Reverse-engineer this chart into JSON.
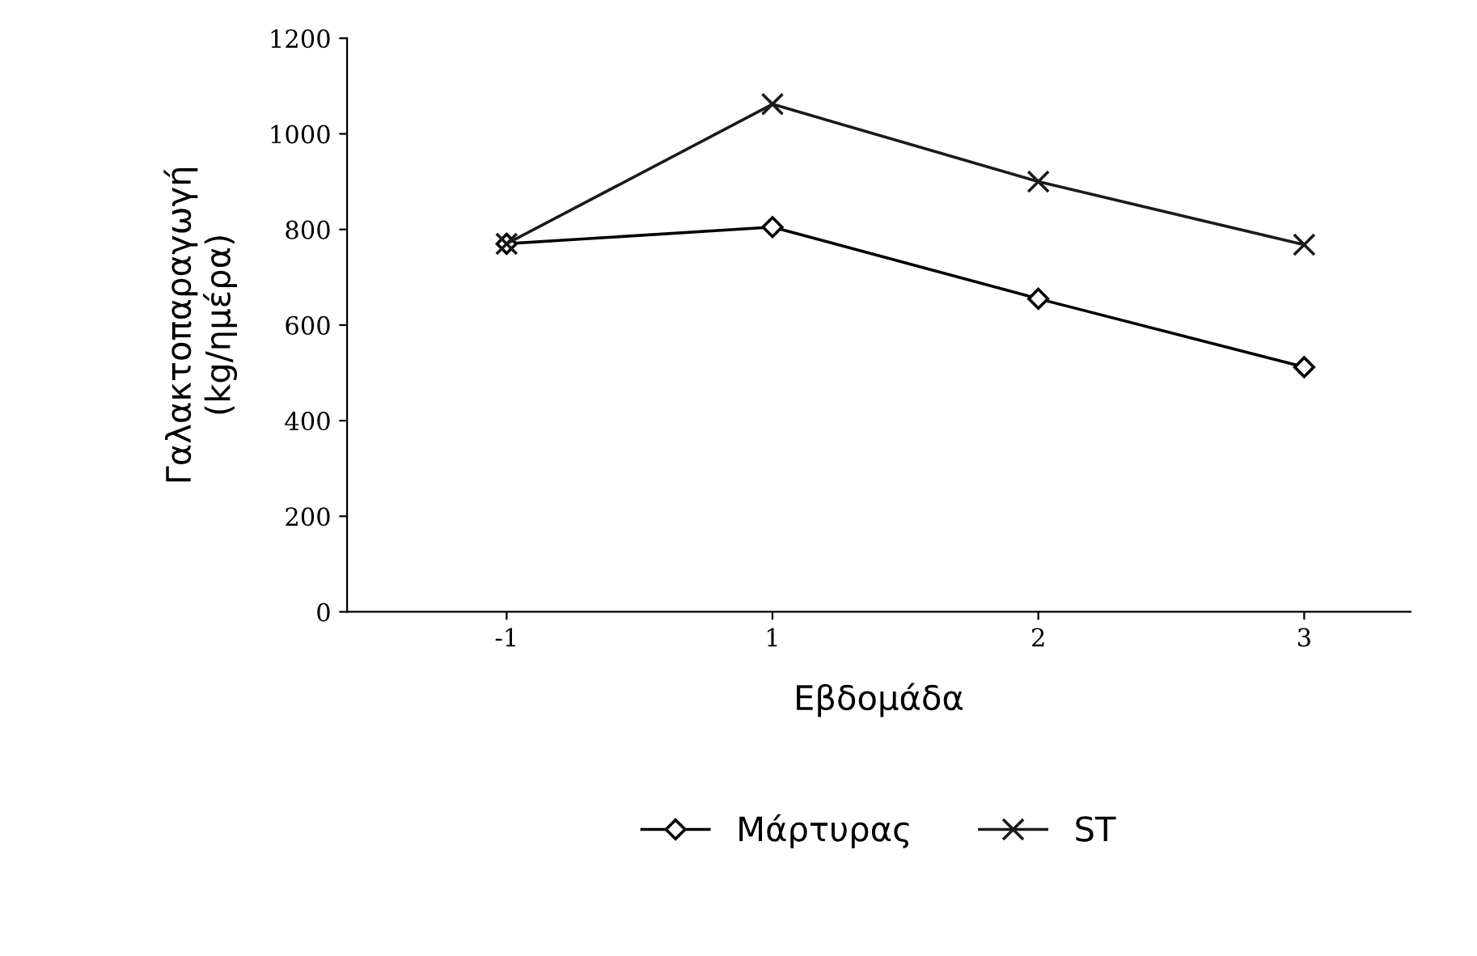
{
  "chart_data": {
    "type": "line",
    "xlabel": "Εβδομάδα",
    "ylabel": "Γαλακτοπαραγωγή\n(kg/ημέρα)",
    "categories": [
      "-1",
      "1",
      "2",
      "3"
    ],
    "series": [
      {
        "name": "Μάρτυρας",
        "color": "#000000",
        "marker": "diamond",
        "values": [
          770,
          805,
          655,
          512
        ]
      },
      {
        "name": "ST",
        "color": "#1a1a1a",
        "marker": "cross",
        "values": [
          770,
          1062,
          900,
          768
        ]
      }
    ],
    "ylim": [
      0,
      1200
    ],
    "yticks": [
      0,
      200,
      400,
      600,
      800,
      1000,
      1200
    ],
    "grid": false,
    "legend": "bottom",
    "line_style": "solid"
  }
}
